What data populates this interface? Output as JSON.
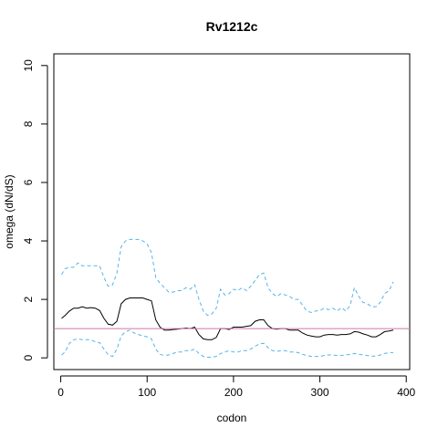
{
  "chart_data": {
    "type": "line",
    "title": "Rv1212c",
    "xlabel": "codon",
    "ylabel": "omega (dN/dS)",
    "xlim": [
      -8,
      404
    ],
    "ylim": [
      -0.4,
      10.4
    ],
    "x_ticks": [
      0,
      100,
      200,
      300,
      400
    ],
    "y_ticks": [
      0,
      2,
      4,
      6,
      8,
      10
    ],
    "grid": false,
    "reference_line": {
      "y": 1,
      "color": "#cc79a7"
    },
    "series": [
      {
        "color": "#000000",
        "dash": "solid",
        "points": [
          [
            1,
            1.35
          ],
          [
            5,
            1.45
          ],
          [
            10,
            1.6
          ],
          [
            15,
            1.7
          ],
          [
            20,
            1.7
          ],
          [
            25,
            1.75
          ],
          [
            30,
            1.7
          ],
          [
            35,
            1.72
          ],
          [
            40,
            1.7
          ],
          [
            45,
            1.62
          ],
          [
            50,
            1.35
          ],
          [
            55,
            1.15
          ],
          [
            60,
            1.12
          ],
          [
            65,
            1.25
          ],
          [
            70,
            1.85
          ],
          [
            75,
            2.0
          ],
          [
            80,
            2.05
          ],
          [
            85,
            2.05
          ],
          [
            90,
            2.05
          ],
          [
            95,
            2.05
          ],
          [
            100,
            2.0
          ],
          [
            105,
            1.95
          ],
          [
            110,
            1.3
          ],
          [
            115,
            1.05
          ],
          [
            120,
            0.95
          ],
          [
            125,
            0.95
          ],
          [
            130,
            0.97
          ],
          [
            135,
            0.98
          ],
          [
            140,
            1.0
          ],
          [
            145,
            1.02
          ],
          [
            150,
            1.0
          ],
          [
            155,
            1.05
          ],
          [
            160,
            0.8
          ],
          [
            165,
            0.65
          ],
          [
            170,
            0.62
          ],
          [
            175,
            0.62
          ],
          [
            180,
            0.7
          ],
          [
            185,
            1.0
          ],
          [
            190,
            1.0
          ],
          [
            195,
            0.97
          ],
          [
            200,
            1.05
          ],
          [
            205,
            1.05
          ],
          [
            210,
            1.05
          ],
          [
            215,
            1.08
          ],
          [
            220,
            1.1
          ],
          [
            225,
            1.25
          ],
          [
            230,
            1.3
          ],
          [
            235,
            1.3
          ],
          [
            240,
            1.1
          ],
          [
            245,
            1.0
          ],
          [
            250,
            0.98
          ],
          [
            255,
            1.0
          ],
          [
            260,
            1.0
          ],
          [
            265,
            0.95
          ],
          [
            270,
            0.95
          ],
          [
            275,
            0.95
          ],
          [
            280,
            0.85
          ],
          [
            285,
            0.78
          ],
          [
            290,
            0.75
          ],
          [
            295,
            0.72
          ],
          [
            300,
            0.72
          ],
          [
            305,
            0.78
          ],
          [
            310,
            0.8
          ],
          [
            315,
            0.8
          ],
          [
            320,
            0.78
          ],
          [
            325,
            0.8
          ],
          [
            330,
            0.8
          ],
          [
            335,
            0.82
          ],
          [
            340,
            0.9
          ],
          [
            345,
            0.88
          ],
          [
            350,
            0.82
          ],
          [
            355,
            0.78
          ],
          [
            360,
            0.72
          ],
          [
            365,
            0.72
          ],
          [
            370,
            0.8
          ],
          [
            375,
            0.9
          ],
          [
            380,
            0.92
          ],
          [
            385,
            0.95
          ]
        ]
      },
      {
        "color": "#56b4e9",
        "dash": "dashed",
        "points": [
          [
            1,
            2.85
          ],
          [
            5,
            3.05
          ],
          [
            10,
            3.1
          ],
          [
            15,
            3.1
          ],
          [
            20,
            3.25
          ],
          [
            25,
            3.15
          ],
          [
            30,
            3.15
          ],
          [
            35,
            3.15
          ],
          [
            40,
            3.15
          ],
          [
            45,
            3.15
          ],
          [
            50,
            2.75
          ],
          [
            55,
            2.45
          ],
          [
            60,
            2.5
          ],
          [
            65,
            2.9
          ],
          [
            70,
            3.8
          ],
          [
            75,
            4.0
          ],
          [
            80,
            4.05
          ],
          [
            85,
            4.05
          ],
          [
            90,
            4.05
          ],
          [
            95,
            4.0
          ],
          [
            100,
            3.9
          ],
          [
            105,
            3.6
          ],
          [
            110,
            2.75
          ],
          [
            115,
            2.55
          ],
          [
            120,
            2.4
          ],
          [
            125,
            2.25
          ],
          [
            130,
            2.25
          ],
          [
            135,
            2.3
          ],
          [
            140,
            2.3
          ],
          [
            145,
            2.4
          ],
          [
            150,
            2.35
          ],
          [
            155,
            2.5
          ],
          [
            160,
            2.0
          ],
          [
            165,
            1.6
          ],
          [
            170,
            1.45
          ],
          [
            175,
            1.5
          ],
          [
            180,
            1.7
          ],
          [
            185,
            2.35
          ],
          [
            190,
            2.15
          ],
          [
            195,
            2.2
          ],
          [
            200,
            2.35
          ],
          [
            205,
            2.3
          ],
          [
            210,
            2.4
          ],
          [
            215,
            2.3
          ],
          [
            220,
            2.45
          ],
          [
            225,
            2.65
          ],
          [
            230,
            2.85
          ],
          [
            235,
            2.9
          ],
          [
            240,
            2.4
          ],
          [
            245,
            2.2
          ],
          [
            250,
            2.1
          ],
          [
            255,
            2.2
          ],
          [
            260,
            2.15
          ],
          [
            265,
            2.1
          ],
          [
            270,
            2.0
          ],
          [
            275,
            2.0
          ],
          [
            280,
            1.8
          ],
          [
            285,
            1.6
          ],
          [
            290,
            1.55
          ],
          [
            295,
            1.6
          ],
          [
            300,
            1.62
          ],
          [
            305,
            1.7
          ],
          [
            310,
            1.65
          ],
          [
            315,
            1.7
          ],
          [
            320,
            1.6
          ],
          [
            325,
            1.72
          ],
          [
            330,
            1.6
          ],
          [
            335,
            1.8
          ],
          [
            340,
            2.4
          ],
          [
            345,
            2.1
          ],
          [
            350,
            1.9
          ],
          [
            355,
            1.85
          ],
          [
            360,
            1.75
          ],
          [
            365,
            1.75
          ],
          [
            370,
            1.9
          ],
          [
            375,
            2.2
          ],
          [
            380,
            2.3
          ],
          [
            385,
            2.6
          ]
        ]
      },
      {
        "color": "#56b4e9",
        "dash": "dashed",
        "points": [
          [
            1,
            0.1
          ],
          [
            5,
            0.2
          ],
          [
            10,
            0.5
          ],
          [
            15,
            0.62
          ],
          [
            20,
            0.65
          ],
          [
            25,
            0.62
          ],
          [
            30,
            0.62
          ],
          [
            35,
            0.62
          ],
          [
            40,
            0.55
          ],
          [
            45,
            0.52
          ],
          [
            50,
            0.3
          ],
          [
            55,
            0.1
          ],
          [
            60,
            0.05
          ],
          [
            65,
            0.3
          ],
          [
            70,
            0.75
          ],
          [
            75,
            0.9
          ],
          [
            80,
            0.95
          ],
          [
            85,
            0.85
          ],
          [
            90,
            0.8
          ],
          [
            95,
            0.75
          ],
          [
            100,
            0.72
          ],
          [
            105,
            0.65
          ],
          [
            110,
            0.3
          ],
          [
            115,
            0.12
          ],
          [
            120,
            0.08
          ],
          [
            125,
            0.1
          ],
          [
            130,
            0.15
          ],
          [
            135,
            0.2
          ],
          [
            140,
            0.2
          ],
          [
            145,
            0.25
          ],
          [
            150,
            0.25
          ],
          [
            155,
            0.3
          ],
          [
            160,
            0.15
          ],
          [
            165,
            0.05
          ],
          [
            170,
            0.02
          ],
          [
            175,
            0.02
          ],
          [
            180,
            0.05
          ],
          [
            185,
            0.15
          ],
          [
            190,
            0.2
          ],
          [
            195,
            0.25
          ],
          [
            200,
            0.2
          ],
          [
            205,
            0.2
          ],
          [
            210,
            0.25
          ],
          [
            215,
            0.25
          ],
          [
            220,
            0.3
          ],
          [
            225,
            0.4
          ],
          [
            230,
            0.48
          ],
          [
            235,
            0.5
          ],
          [
            240,
            0.35
          ],
          [
            245,
            0.25
          ],
          [
            250,
            0.22
          ],
          [
            255,
            0.25
          ],
          [
            260,
            0.25
          ],
          [
            265,
            0.2
          ],
          [
            270,
            0.2
          ],
          [
            275,
            0.18
          ],
          [
            280,
            0.12
          ],
          [
            285,
            0.08
          ],
          [
            290,
            0.05
          ],
          [
            295,
            0.05
          ],
          [
            300,
            0.05
          ],
          [
            305,
            0.08
          ],
          [
            310,
            0.1
          ],
          [
            315,
            0.1
          ],
          [
            320,
            0.08
          ],
          [
            325,
            0.08
          ],
          [
            330,
            0.1
          ],
          [
            335,
            0.12
          ],
          [
            340,
            0.15
          ],
          [
            345,
            0.12
          ],
          [
            350,
            0.1
          ],
          [
            355,
            0.08
          ],
          [
            360,
            0.06
          ],
          [
            365,
            0.06
          ],
          [
            370,
            0.1
          ],
          [
            375,
            0.15
          ],
          [
            380,
            0.18
          ],
          [
            385,
            0.18
          ]
        ]
      }
    ]
  }
}
